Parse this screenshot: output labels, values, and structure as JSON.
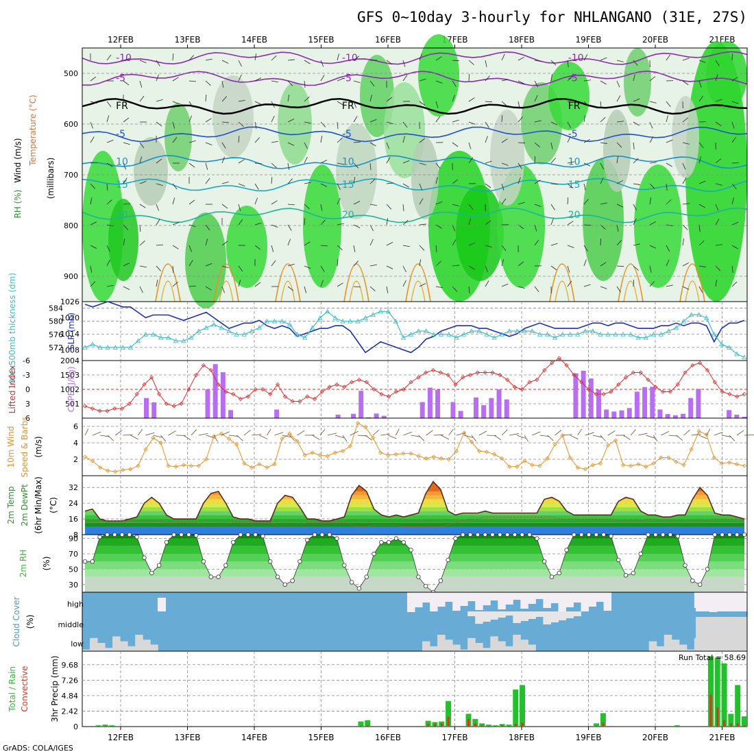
{
  "title": "GFS 0~10day 3-hourly for NHLANGANO (31E, 27S)",
  "footer": "GrADS: COLA/IGES",
  "dates": [
    "12FEB",
    "13FEB",
    "14FEB",
    "15FEB",
    "16FEB",
    "17FEB",
    "18FEB",
    "19FEB",
    "20FEB",
    "21FEB"
  ],
  "chart_data": [
    {
      "type": "heatmap",
      "panel": "upper-air",
      "ylabel_parts": [
        "Wind (m/s)",
        "Temperature (°C)",
        "RH (%)",
        "(millibars)"
      ],
      "y_ticks": [
        500,
        600,
        700,
        800,
        900
      ],
      "ylim": [
        450,
        950
      ],
      "temperature_contours": [
        {
          "label": "-10",
          "level_mb": 470,
          "color": "#8a2ab0"
        },
        {
          "label": "-5",
          "level_mb": 510,
          "color": "#8a2ab0"
        },
        {
          "label": "FR",
          "level_mb": 565,
          "color": "#000000"
        },
        {
          "label": "-5",
          "level_mb": 620,
          "color": "#1f4fc9"
        },
        {
          "label": "10",
          "level_mb": 675,
          "color": "#1590c8"
        },
        {
          "label": "15",
          "level_mb": 720,
          "color": "#18a7c0"
        },
        {
          "label": "20",
          "level_mb": 780,
          "color": "#1fb39a"
        }
      ]
    },
    {
      "type": "line",
      "panel": "slp-thickness",
      "ylabel_left": "1000-500mb thickness (dm)",
      "ylabel_right": "SLP (mb)",
      "y_ticks_left": [
        572,
        576,
        580,
        584
      ],
      "y_ticks_right": [
        1008,
        1014,
        1020,
        1026
      ],
      "ylim_left": [
        568,
        586
      ],
      "ylim_right": [
        1004,
        1026
      ],
      "series": [
        {
          "values": [
            1025,
            1024,
            1025,
            1026,
            1025,
            1024,
            1024,
            1022,
            1020,
            1021,
            1021,
            1021,
            1020,
            1019,
            1020,
            1021,
            1022,
            1020,
            1018,
            1016,
            1017,
            1018,
            1018,
            1019,
            1017,
            1016,
            1017,
            1016,
            1013,
            1014,
            1015,
            1016,
            1016,
            1017,
            1017,
            1015,
            1011,
            1007,
            1009,
            1011,
            1010,
            1009,
            1008,
            1007,
            1009,
            1012,
            1013,
            1015,
            1016,
            1017,
            1017,
            1017,
            1016,
            1016,
            1015,
            1014,
            1013,
            1014,
            1016,
            1017,
            1018,
            1017,
            1016,
            1016,
            1016,
            1016,
            1017,
            1018,
            1018,
            1017,
            1018,
            1018,
            1017,
            1016,
            1016,
            1016,
            1017,
            1017,
            1018,
            1017,
            1018,
            1018,
            1017,
            1011,
            1016,
            1018,
            1018,
            1019
          ],
          "color": "#1a2fb5"
        },
        {
          "values": [
            572,
            573,
            572,
            572,
            572,
            572,
            572,
            574,
            576,
            576,
            575,
            575,
            574,
            574,
            575,
            577,
            578,
            579,
            578,
            577,
            576,
            576,
            577,
            578,
            580,
            580,
            580,
            579,
            576,
            575,
            578,
            581,
            583,
            581,
            580,
            580,
            580,
            581,
            582,
            583,
            583,
            580,
            575,
            576,
            577,
            577,
            576,
            576,
            576,
            575,
            576,
            577,
            577,
            576,
            575,
            576,
            577,
            577,
            577,
            577,
            576,
            576,
            575,
            576,
            576,
            576,
            577,
            577,
            576,
            576,
            576,
            576,
            576,
            575,
            575,
            576,
            576,
            577,
            578,
            580,
            582,
            582,
            581,
            576,
            573,
            572,
            570,
            569
          ],
          "color": "#3bbcc6"
        }
      ]
    },
    {
      "type": "bar",
      "panel": "cape-lifted-index",
      "ylabel_left": "Lifted Index",
      "ylabel_right": "CAPE (J/kg)",
      "y_ticks_left": [
        -6,
        -3,
        0,
        3,
        6
      ],
      "y_ticks_right": [
        501,
        1002,
        1503,
        2004
      ],
      "ylim_left": [
        6,
        -6
      ],
      "ylim_right": [
        0,
        2004
      ],
      "series": [
        {
          "name": "CAPE",
          "values": [
            0,
            0,
            0,
            0,
            0,
            0,
            0,
            0,
            700,
            550,
            0,
            0,
            0,
            0,
            0,
            0,
            1000,
            1880,
            1600,
            280,
            0,
            0,
            0,
            0,
            0,
            300,
            0,
            0,
            0,
            0,
            0,
            0,
            0,
            120,
            0,
            150,
            950,
            30,
            160,
            80,
            0,
            0,
            0,
            0,
            560,
            1060,
            990,
            0,
            560,
            250,
            0,
            720,
            450,
            700,
            1000,
            650,
            0,
            0,
            0,
            0,
            0,
            0,
            0,
            0,
            1560,
            1650,
            1380,
            990,
            300,
            230,
            270,
            350,
            920,
            1080,
            1090,
            300,
            140,
            100,
            150,
            700,
            1020,
            0,
            0,
            0,
            280,
            120,
            50
          ],
          "color": "#b76ef0"
        },
        {
          "name": "Lifted Index",
          "values": [
            3.5,
            4.0,
            4.5,
            4.5,
            4.0,
            4.0,
            3.0,
            1.0,
            -1.0,
            -2.5,
            1.0,
            3.0,
            3.5,
            3.0,
            0.0,
            -3.0,
            -5.0,
            -4.0,
            -1.0,
            0.5,
            1.0,
            2.0,
            1.5,
            0.0,
            0.0,
            1.0,
            -1.0,
            1.5,
            2.5,
            2.5,
            1.5,
            2.0,
            0.5,
            -0.5,
            -1.0,
            -0.5,
            -1.5,
            -2.0,
            -1.5,
            0.0,
            1.0,
            1.5,
            0.5,
            0.0,
            -1.5,
            -2.5,
            -3.5,
            -4.0,
            -3.5,
            -3.0,
            -1.0,
            -2.5,
            -3.0,
            -3.5,
            -3.5,
            -3.5,
            -3.0,
            -2.0,
            -0.5,
            0.0,
            -1.5,
            -2.0,
            -4.0,
            -5.5,
            -6.5,
            -5.0,
            -3.0,
            -1.5,
            0.0,
            1.0,
            1.0,
            0.5,
            -1.0,
            -2.5,
            -3.5,
            -3.5,
            -2.0,
            -0.5,
            0.5,
            0.5,
            -1.0,
            -3.5,
            -5.0,
            -5.5,
            -4.0,
            -1.5,
            0.5,
            1.0,
            1.5,
            1.0
          ],
          "color": "#dd2b2b"
        }
      ]
    },
    {
      "type": "line",
      "panel": "10m-wind",
      "ylabel_parts": [
        "10m Wind",
        "Speed & Barbs",
        "(m/s)"
      ],
      "y_ticks": [
        2,
        4,
        6
      ],
      "ylim": [
        0,
        7
      ],
      "series": [
        {
          "values": [
            2.3,
            1.8,
            1.0,
            0.6,
            0.5,
            0.7,
            0.8,
            1.2,
            3.2,
            4.6,
            4.0,
            1.2,
            1.1,
            1.3,
            1.2,
            1.2,
            2.0,
            4.8,
            5.1,
            4.5,
            3.8,
            1.5,
            1.0,
            1.4,
            1.0,
            1.4,
            4.5,
            5.1,
            4.2,
            2.5,
            2.8,
            2.5,
            2.4,
            2.8,
            3.0,
            3.6,
            6.4,
            5.9,
            4.6,
            2.8,
            2.5,
            2.6,
            2.7,
            2.7,
            2.4,
            2.1,
            2.3,
            2.1,
            2.0,
            3.0,
            5.2,
            4.1,
            3.0,
            2.9,
            2.6,
            2.1,
            1.1,
            1.1,
            1.8,
            1.3,
            1.2,
            2.1,
            3.8,
            4.9,
            2.2,
            1.0,
            0.8,
            1.3,
            1.5,
            3.7,
            4.3,
            1.3,
            1.2,
            1.4,
            1.1,
            1.5,
            2.2,
            2.2,
            1.7,
            1.3,
            3.2,
            5.4,
            5.0,
            2.2,
            1.5,
            1.6,
            1.4,
            1.2
          ],
          "color": "#e89020"
        }
      ]
    },
    {
      "type": "area",
      "panel": "2m-temp",
      "ylabel_parts": [
        "2m Temp",
        "2m DewPt",
        "(6hr Min/Max)",
        "(°C)"
      ],
      "y_ticks": [
        8,
        16,
        24,
        32
      ],
      "ylim": [
        8,
        38
      ],
      "series": [
        {
          "name": "2m Temp",
          "values": [
            20,
            21,
            16,
            15,
            15,
            15,
            16,
            17,
            24,
            27,
            24,
            18,
            16,
            16,
            16,
            16,
            24,
            29,
            30,
            24,
            17,
            16,
            16,
            15,
            15,
            15,
            24,
            28,
            27,
            22,
            16,
            16,
            15,
            15,
            16,
            17,
            28,
            33,
            30,
            21,
            18,
            17,
            18,
            17,
            18,
            19,
            29,
            35,
            31,
            20,
            18,
            19,
            19,
            19,
            20,
            19,
            19,
            19,
            19,
            19,
            19,
            19,
            26,
            27,
            25,
            20,
            18,
            18,
            18,
            18,
            18,
            18,
            25,
            27,
            26,
            20,
            18,
            18,
            17,
            17,
            18,
            18,
            26,
            32,
            28,
            19,
            18,
            18,
            17,
            16
          ],
          "color": "#5a2a1a"
        },
        {
          "name": "2m DewPt",
          "values": [
            15,
            15,
            15,
            15,
            15,
            15,
            15,
            15,
            15,
            15,
            15,
            14,
            14,
            14,
            14,
            14,
            13,
            13,
            13,
            13,
            14,
            14,
            14,
            14,
            14,
            14,
            13,
            13,
            13,
            13,
            14,
            14,
            14,
            14,
            14,
            14,
            13,
            12,
            12,
            13,
            13,
            13,
            13,
            12,
            12,
            12,
            12,
            12,
            12,
            13,
            14,
            15,
            16,
            16,
            17,
            17,
            17,
            17,
            17,
            17,
            17,
            17,
            17,
            17,
            16,
            16,
            16,
            16,
            16,
            16,
            16,
            16,
            15,
            15,
            15,
            15,
            16,
            16,
            15,
            15,
            15,
            15,
            15,
            15,
            15,
            16,
            16,
            16,
            16,
            15
          ],
          "color": "#777777"
        }
      ]
    },
    {
      "type": "area",
      "panel": "2m-rh",
      "ylabel_parts": [
        "2m RH",
        "(%)"
      ],
      "y_ticks": [
        30,
        50,
        70,
        90
      ],
      "ylim": [
        20,
        95
      ],
      "series": [
        {
          "name": "2m RH",
          "values": [
            60,
            60,
            92,
            95,
            95,
            95,
            95,
            92,
            65,
            45,
            55,
            85,
            95,
            95,
            95,
            94,
            60,
            40,
            40,
            55,
            85,
            95,
            95,
            95,
            93,
            60,
            40,
            30,
            35,
            60,
            88,
            95,
            95,
            95,
            90,
            55,
            33,
            25,
            40,
            70,
            85,
            85,
            90,
            85,
            75,
            40,
            28,
            20,
            35,
            62,
            90,
            95,
            95,
            95,
            95,
            95,
            95,
            95,
            95,
            95,
            95,
            90,
            60,
            40,
            45,
            75,
            95,
            95,
            95,
            95,
            95,
            93,
            62,
            42,
            45,
            70,
            95,
            95,
            95,
            95,
            93,
            55,
            35,
            30,
            50,
            95,
            95,
            95,
            95,
            95
          ],
          "color": "#2fbf2f"
        }
      ]
    },
    {
      "type": "heatmap",
      "panel": "cloud-cover",
      "ylabel_parts": [
        "Cloud Cover",
        "(%)"
      ],
      "row_labels": [
        "high",
        "middle",
        "low"
      ]
    },
    {
      "type": "bar",
      "panel": "precip",
      "ylabel_parts": [
        "Total / Rain",
        "Convective",
        "3hr Precip (mm)"
      ],
      "run_total_label": "Run Total = 58.69",
      "y_ticks": [
        0,
        2.42,
        4.84,
        7.26,
        9.68
      ],
      "ylim": [
        0,
        11.8
      ],
      "series": [
        {
          "name": "Total",
          "values": [
            0,
            0.1,
            0.2,
            0.3,
            0.2,
            0.1,
            0,
            0,
            0,
            0,
            0,
            0,
            0,
            0.1,
            0,
            0,
            0,
            0,
            0,
            0,
            0,
            0,
            0,
            0,
            0,
            0,
            0,
            0,
            0,
            0,
            0,
            0,
            0,
            0,
            0,
            0,
            0,
            0,
            0,
            0,
            0,
            0.8,
            1.0,
            0,
            0,
            0,
            0,
            0,
            0,
            0,
            0,
            0.9,
            0.7,
            0.8,
            4.0,
            0,
            0,
            2.0,
            1.2,
            0.5,
            0.3,
            0.2,
            0.4,
            0.3,
            5.8,
            6.5,
            0,
            0,
            0,
            0,
            0,
            0,
            0,
            0,
            0,
            0,
            0.5,
            2.1,
            0,
            0.1,
            0.1,
            0.1,
            0.1,
            0,
            0,
            0,
            0,
            0,
            0.2,
            0,
            0,
            0,
            0,
            11.0,
            10.8,
            9.9,
            2.0,
            6.5,
            1.6
          ],
          "color": "#22c02a"
        },
        {
          "name": "Convective",
          "values": [
            0,
            0.05,
            0.1,
            0.1,
            0.1,
            0,
            0,
            0,
            0,
            0,
            0,
            0,
            0,
            0,
            0,
            0,
            0,
            0,
            0,
            0,
            0,
            0,
            0,
            0,
            0,
            0,
            0,
            0,
            0,
            0,
            0,
            0,
            0,
            0,
            0,
            0,
            0,
            0,
            0,
            0,
            0,
            0.1,
            0.2,
            0,
            0,
            0,
            0,
            0,
            0,
            0,
            0,
            0.4,
            0.4,
            0.5,
            1.5,
            0,
            0,
            1.2,
            0.5,
            0.2,
            0.1,
            0.1,
            0.2,
            0.1,
            0.4,
            0.6,
            0,
            0,
            0,
            0,
            0,
            0,
            0,
            0,
            0,
            0,
            0.1,
            0.6,
            0,
            0,
            0,
            0,
            0,
            0,
            0,
            0,
            0,
            0,
            0.1,
            0,
            0,
            0,
            0,
            5.0,
            3.0,
            1.0,
            0.5,
            0.5,
            0.2
          ],
          "color": "#e03020"
        }
      ]
    }
  ]
}
